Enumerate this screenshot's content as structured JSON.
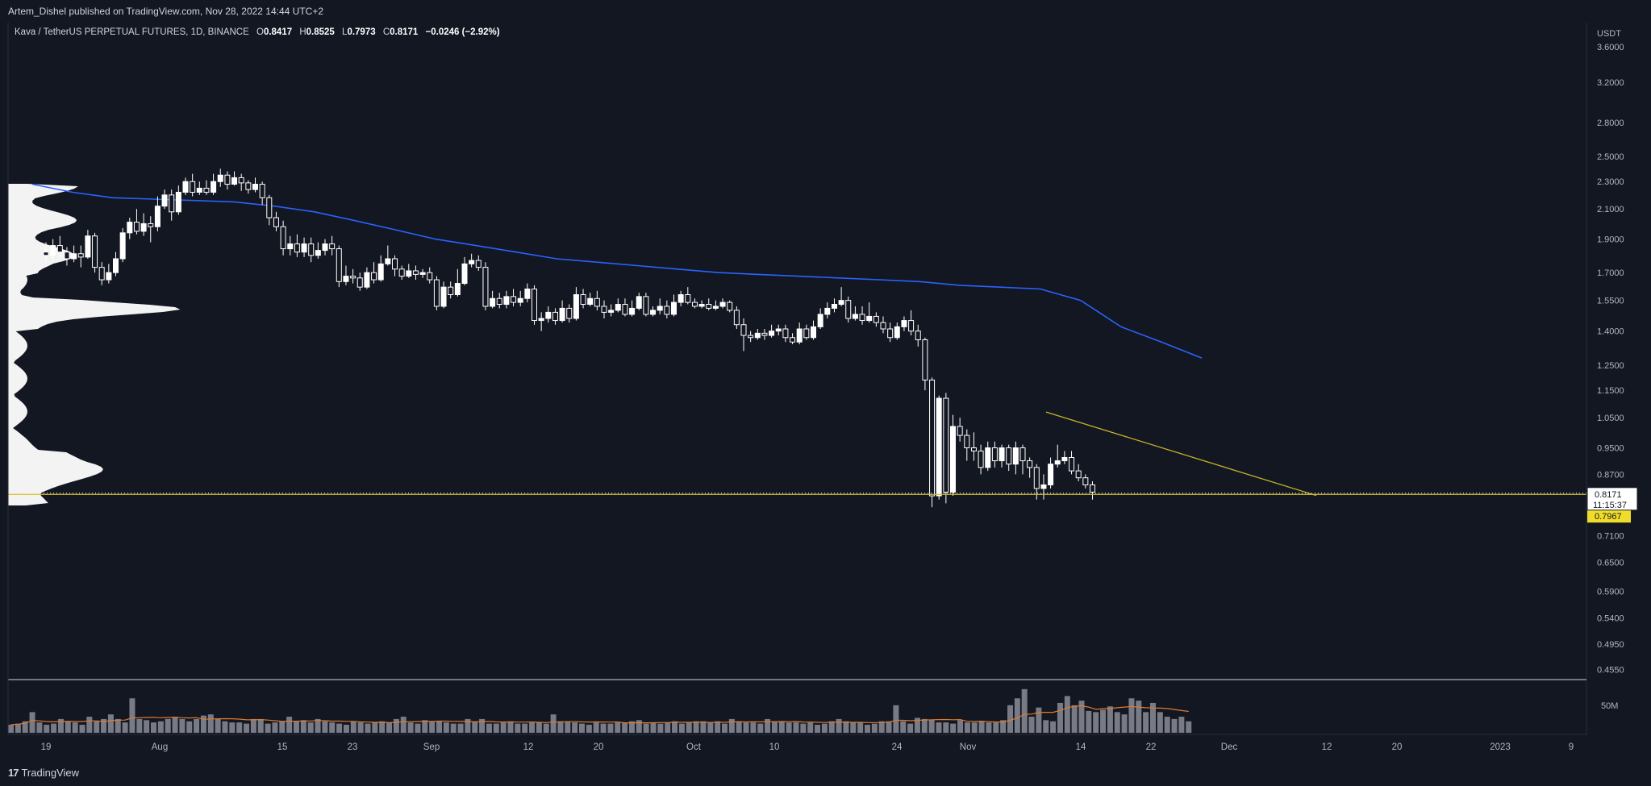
{
  "header": {
    "published_by": "Artem_Dishel published on TradingView.com, Nov 28, 2022 14:44 UTC+2"
  },
  "legend": {
    "symbol": "Kava / TetherUS PERPETUAL FUTURES, 1D, BINANCE",
    "o_label": "O",
    "o_value": "0.8417",
    "h_label": "H",
    "h_value": "0.8525",
    "l_label": "L",
    "l_value": "0.7973",
    "c_label": "C",
    "c_value": "0.8171",
    "change": "−0.0246 (−2.92%)"
  },
  "footer": {
    "logo": "17",
    "brand": "TradingView"
  },
  "colors": {
    "background": "#131722",
    "candle": "#ffffff",
    "ma_line": "#2962ff",
    "trendline": "#c9b52a",
    "support": "#d4bf2f",
    "volume": "#787b86",
    "volume_ma": "#e07a2e",
    "grid_border": "#d1d4dc"
  },
  "chart_data": {
    "type": "candlestick",
    "price_axis": {
      "unit": "USDT",
      "scale": "log",
      "ticks": [
        "3.6000",
        "3.2000",
        "2.8000",
        "2.5000",
        "2.3000",
        "2.1000",
        "1.9000",
        "1.7000",
        "1.5500",
        "1.4000",
        "1.2500",
        "1.1500",
        "1.0500",
        "0.9500",
        "0.8700",
        "0.7100",
        "0.6500",
        "0.5900",
        "0.5400",
        "0.4950",
        "0.4550"
      ],
      "range": [
        0.44,
        3.9
      ]
    },
    "time_axis": {
      "ticks": [
        "19",
        "Aug",
        "15",
        "23",
        "Sep",
        "12",
        "20",
        "Oct",
        "10",
        "24",
        "Nov",
        "14",
        "22",
        "Dec",
        "12",
        "20",
        "2023",
        "9"
      ],
      "range_days": [
        "2022-07-13",
        "2023-01-12"
      ]
    },
    "last_price": {
      "value": "0.8171",
      "countdown": "11:15:37"
    },
    "support_level": {
      "value": "0.7967"
    },
    "volume_axis": {
      "ticks": [
        "50M"
      ]
    },
    "candles": [
      [
        1.82,
        1.8,
        1.88,
        1.76
      ],
      [
        1.8,
        1.86,
        1.9,
        1.77
      ],
      [
        1.86,
        1.82,
        1.92,
        1.79
      ],
      [
        1.82,
        1.78,
        1.85,
        1.74
      ],
      [
        1.78,
        1.81,
        1.86,
        1.76
      ],
      [
        1.81,
        1.79,
        1.86,
        1.73
      ],
      [
        1.79,
        1.92,
        1.96,
        1.78
      ],
      [
        1.92,
        1.73,
        1.94,
        1.7
      ],
      [
        1.73,
        1.66,
        1.76,
        1.63
      ],
      [
        1.66,
        1.7,
        1.75,
        1.64
      ],
      [
        1.7,
        1.78,
        1.82,
        1.68
      ],
      [
        1.78,
        1.94,
        1.97,
        1.76
      ],
      [
        1.94,
        2.01,
        2.04,
        1.9
      ],
      [
        2.01,
        1.95,
        2.1,
        1.93
      ],
      [
        1.95,
        2.0,
        2.07,
        1.92
      ],
      [
        2.0,
        1.98,
        2.05,
        1.88
      ],
      [
        1.98,
        2.12,
        2.19,
        1.95
      ],
      [
        2.12,
        2.2,
        2.24,
        2.1
      ],
      [
        2.2,
        2.08,
        2.24,
        2.02
      ],
      [
        2.08,
        2.22,
        2.27,
        2.06
      ],
      [
        2.22,
        2.3,
        2.33,
        2.2
      ],
      [
        2.3,
        2.22,
        2.36,
        2.19
      ],
      [
        2.22,
        2.25,
        2.3,
        2.2
      ],
      [
        2.25,
        2.22,
        2.31,
        2.2
      ],
      [
        2.22,
        2.3,
        2.36,
        2.2
      ],
      [
        2.3,
        2.35,
        2.4,
        2.26
      ],
      [
        2.35,
        2.28,
        2.38,
        2.24
      ],
      [
        2.28,
        2.33,
        2.38,
        2.27
      ],
      [
        2.33,
        2.29,
        2.36,
        2.23
      ],
      [
        2.29,
        2.24,
        2.31,
        2.21
      ],
      [
        2.24,
        2.28,
        2.33,
        2.22
      ],
      [
        2.28,
        2.18,
        2.3,
        2.13
      ],
      [
        2.18,
        2.04,
        2.2,
        1.99
      ],
      [
        2.04,
        1.98,
        2.08,
        1.95
      ],
      [
        1.98,
        1.84,
        2.02,
        1.8
      ],
      [
        1.84,
        1.87,
        1.92,
        1.8
      ],
      [
        1.87,
        1.82,
        1.93,
        1.79
      ],
      [
        1.82,
        1.87,
        1.91,
        1.79
      ],
      [
        1.87,
        1.8,
        1.91,
        1.76
      ],
      [
        1.8,
        1.83,
        1.88,
        1.78
      ],
      [
        1.83,
        1.87,
        1.9,
        1.8
      ],
      [
        1.87,
        1.84,
        1.92,
        1.8
      ],
      [
        1.84,
        1.65,
        1.86,
        1.62
      ],
      [
        1.65,
        1.68,
        1.74,
        1.63
      ],
      [
        1.68,
        1.67,
        1.72,
        1.64
      ],
      [
        1.67,
        1.62,
        1.7,
        1.6
      ],
      [
        1.62,
        1.7,
        1.73,
        1.61
      ],
      [
        1.7,
        1.66,
        1.76,
        1.64
      ],
      [
        1.66,
        1.75,
        1.8,
        1.65
      ],
      [
        1.75,
        1.78,
        1.86,
        1.74
      ],
      [
        1.78,
        1.72,
        1.8,
        1.68
      ],
      [
        1.72,
        1.68,
        1.74,
        1.66
      ],
      [
        1.68,
        1.71,
        1.75,
        1.67
      ],
      [
        1.71,
        1.69,
        1.74,
        1.66
      ],
      [
        1.69,
        1.7,
        1.72,
        1.67
      ],
      [
        1.7,
        1.66,
        1.73,
        1.64
      ],
      [
        1.66,
        1.52,
        1.68,
        1.5
      ],
      [
        1.52,
        1.62,
        1.65,
        1.51
      ],
      [
        1.62,
        1.58,
        1.65,
        1.56
      ],
      [
        1.58,
        1.64,
        1.72,
        1.57
      ],
      [
        1.64,
        1.75,
        1.79,
        1.63
      ],
      [
        1.75,
        1.77,
        1.81,
        1.73
      ],
      [
        1.77,
        1.73,
        1.8,
        1.71
      ],
      [
        1.73,
        1.52,
        1.76,
        1.5
      ],
      [
        1.52,
        1.56,
        1.6,
        1.51
      ],
      [
        1.56,
        1.53,
        1.59,
        1.51
      ],
      [
        1.53,
        1.57,
        1.6,
        1.51
      ],
      [
        1.57,
        1.54,
        1.61,
        1.52
      ],
      [
        1.54,
        1.56,
        1.6,
        1.52
      ],
      [
        1.56,
        1.61,
        1.64,
        1.54
      ],
      [
        1.61,
        1.45,
        1.63,
        1.43
      ],
      [
        1.45,
        1.46,
        1.49,
        1.4
      ],
      [
        1.46,
        1.49,
        1.52,
        1.44
      ],
      [
        1.49,
        1.45,
        1.51,
        1.43
      ],
      [
        1.45,
        1.51,
        1.55,
        1.44
      ],
      [
        1.51,
        1.46,
        1.53,
        1.44
      ],
      [
        1.46,
        1.58,
        1.62,
        1.45
      ],
      [
        1.58,
        1.53,
        1.61,
        1.51
      ],
      [
        1.53,
        1.56,
        1.59,
        1.52
      ],
      [
        1.56,
        1.52,
        1.6,
        1.5
      ],
      [
        1.52,
        1.49,
        1.55,
        1.46
      ],
      [
        1.49,
        1.5,
        1.53,
        1.47
      ],
      [
        1.5,
        1.53,
        1.56,
        1.49
      ],
      [
        1.53,
        1.48,
        1.56,
        1.47
      ],
      [
        1.48,
        1.51,
        1.55,
        1.47
      ],
      [
        1.51,
        1.57,
        1.59,
        1.5
      ],
      [
        1.57,
        1.48,
        1.59,
        1.47
      ],
      [
        1.48,
        1.5,
        1.52,
        1.47
      ],
      [
        1.5,
        1.52,
        1.56,
        1.48
      ],
      [
        1.52,
        1.48,
        1.55,
        1.46
      ],
      [
        1.48,
        1.54,
        1.58,
        1.47
      ],
      [
        1.54,
        1.58,
        1.6,
        1.52
      ],
      [
        1.58,
        1.54,
        1.62,
        1.53
      ],
      [
        1.54,
        1.52,
        1.56,
        1.51
      ],
      [
        1.52,
        1.53,
        1.55,
        1.51
      ],
      [
        1.53,
        1.51,
        1.56,
        1.5
      ],
      [
        1.51,
        1.52,
        1.55,
        1.5
      ],
      [
        1.52,
        1.54,
        1.56,
        1.51
      ],
      [
        1.54,
        1.5,
        1.55,
        1.49
      ],
      [
        1.5,
        1.43,
        1.52,
        1.41
      ],
      [
        1.43,
        1.38,
        1.46,
        1.31
      ],
      [
        1.38,
        1.37,
        1.4,
        1.35
      ],
      [
        1.37,
        1.39,
        1.41,
        1.36
      ],
      [
        1.39,
        1.38,
        1.41,
        1.36
      ],
      [
        1.38,
        1.4,
        1.43,
        1.37
      ],
      [
        1.4,
        1.41,
        1.43,
        1.38
      ],
      [
        1.41,
        1.37,
        1.43,
        1.35
      ],
      [
        1.37,
        1.35,
        1.39,
        1.34
      ],
      [
        1.35,
        1.41,
        1.44,
        1.34
      ],
      [
        1.41,
        1.37,
        1.43,
        1.36
      ],
      [
        1.37,
        1.42,
        1.45,
        1.36
      ],
      [
        1.42,
        1.48,
        1.51,
        1.41
      ],
      [
        1.48,
        1.51,
        1.54,
        1.46
      ],
      [
        1.51,
        1.53,
        1.56,
        1.49
      ],
      [
        1.53,
        1.55,
        1.62,
        1.52
      ],
      [
        1.55,
        1.46,
        1.57,
        1.44
      ],
      [
        1.46,
        1.48,
        1.52,
        1.45
      ],
      [
        1.48,
        1.45,
        1.52,
        1.43
      ],
      [
        1.45,
        1.47,
        1.54,
        1.44
      ],
      [
        1.47,
        1.44,
        1.49,
        1.42
      ],
      [
        1.44,
        1.41,
        1.47,
        1.39
      ],
      [
        1.41,
        1.37,
        1.44,
        1.35
      ],
      [
        1.37,
        1.42,
        1.44,
        1.36
      ],
      [
        1.42,
        1.45,
        1.47,
        1.4
      ],
      [
        1.45,
        1.4,
        1.5,
        1.38
      ],
      [
        1.4,
        1.36,
        1.43,
        1.33
      ],
      [
        1.36,
        1.19,
        1.37,
        1.15
      ],
      [
        1.19,
        0.81,
        1.2,
        0.78
      ],
      [
        0.81,
        1.12,
        1.13,
        0.8
      ],
      [
        1.12,
        0.82,
        1.14,
        0.79
      ],
      [
        0.82,
        1.02,
        1.06,
        0.81
      ],
      [
        1.02,
        0.99,
        1.05,
        0.97
      ],
      [
        0.99,
        0.95,
        1.01,
        0.91
      ],
      [
        0.95,
        0.94,
        1.0,
        0.91
      ],
      [
        0.94,
        0.89,
        0.96,
        0.87
      ],
      [
        0.89,
        0.95,
        0.97,
        0.88
      ],
      [
        0.95,
        0.91,
        0.97,
        0.89
      ],
      [
        0.91,
        0.95,
        0.96,
        0.89
      ],
      [
        0.95,
        0.9,
        0.96,
        0.88
      ],
      [
        0.9,
        0.95,
        0.97,
        0.87
      ],
      [
        0.95,
        0.91,
        0.96,
        0.87
      ],
      [
        0.91,
        0.89,
        0.92,
        0.86
      ],
      [
        0.89,
        0.83,
        0.9,
        0.8
      ],
      [
        0.83,
        0.84,
        0.87,
        0.8
      ],
      [
        0.84,
        0.9,
        0.92,
        0.83
      ],
      [
        0.9,
        0.91,
        0.96,
        0.89
      ],
      [
        0.91,
        0.92,
        0.94,
        0.9
      ],
      [
        0.92,
        0.88,
        0.94,
        0.87
      ],
      [
        0.88,
        0.86,
        0.9,
        0.85
      ],
      [
        0.86,
        0.84,
        0.87,
        0.83
      ],
      [
        0.84,
        0.82,
        0.85,
        0.8
      ]
    ],
    "moving_average": [
      2.28,
      2.22,
      2.18,
      2.17,
      2.16,
      2.15,
      2.12,
      2.08,
      2.02,
      1.96,
      1.9,
      1.86,
      1.82,
      1.78,
      1.76,
      1.74,
      1.72,
      1.7,
      1.69,
      1.68,
      1.67,
      1.66,
      1.65,
      1.63,
      1.62,
      1.61,
      1.55,
      1.42,
      1.35,
      1.28
    ],
    "trendline": {
      "from": [
        1.07,
        0.0
      ],
      "to": [
        0.86,
        1.0
      ]
    },
    "volume": [
      7,
      8,
      10,
      18,
      9,
      7,
      8,
      12,
      10,
      9,
      7,
      14,
      10,
      12,
      16,
      12,
      9,
      30,
      12,
      11,
      9,
      10,
      12,
      14,
      12,
      10,
      12,
      15,
      16,
      12,
      10,
      9,
      9,
      8,
      12,
      12,
      8,
      9,
      10,
      14,
      10,
      11,
      9,
      12,
      10,
      9,
      8,
      7,
      10,
      9,
      8,
      9,
      10,
      9,
      12,
      14,
      9,
      8,
      11,
      10,
      10,
      9,
      8,
      8,
      12,
      10,
      12,
      8,
      8,
      9,
      10,
      8,
      8,
      9,
      9,
      8,
      16,
      10,
      10,
      9,
      8,
      7,
      9,
      8,
      8,
      9,
      9,
      10,
      11,
      8,
      9,
      8,
      9,
      10,
      8,
      9,
      10,
      10,
      9,
      10,
      8,
      12,
      10,
      9,
      9,
      8,
      12,
      10,
      10,
      9,
      9,
      8,
      9,
      7,
      8,
      10,
      12,
      10,
      9,
      9,
      7,
      8,
      10,
      10,
      24,
      10,
      8,
      13,
      12,
      11,
      9,
      9,
      8,
      11,
      9,
      9,
      10,
      9,
      9,
      11,
      24,
      30,
      38,
      14,
      22,
      11,
      10,
      26,
      32,
      24,
      28,
      19,
      18,
      20,
      23,
      18,
      16,
      30,
      28,
      18,
      26,
      18,
      14,
      12,
      14,
      10
    ]
  }
}
